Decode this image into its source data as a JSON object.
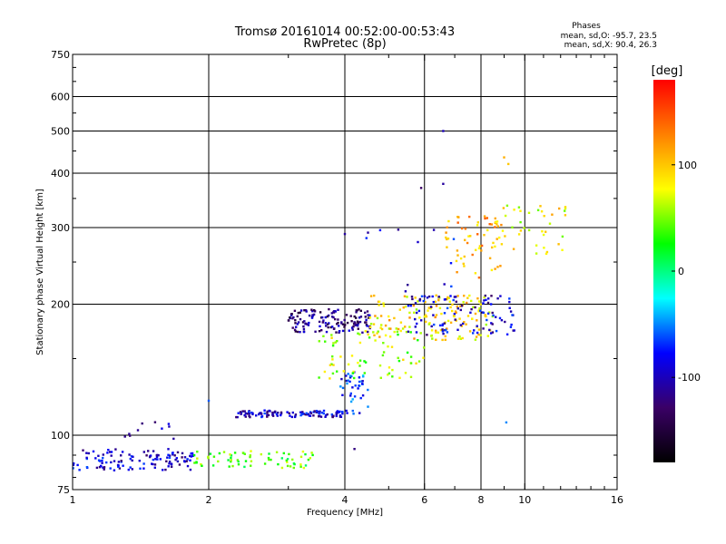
{
  "chart_data": {
    "type": "scatter",
    "title": "Tromsø 20161014 00:52:00-00:53:43",
    "subtitle": "RwPretec (8p)",
    "xlabel": "Frequency [MHz]",
    "ylabel": "Stationary phase Virtual Height [km]",
    "x_scale": "log2",
    "y_scale": "log",
    "xlim": [
      1,
      16
    ],
    "ylim": [
      75,
      750
    ],
    "xticks": [
      1,
      2,
      4,
      6,
      8,
      10,
      16
    ],
    "xtick_labels": [
      "1",
      "2",
      "4",
      "6",
      "8",
      "10",
      "16"
    ],
    "yticks": [
      75,
      100,
      200,
      300,
      400,
      500,
      600,
      750
    ],
    "ytick_labels": [
      "75",
      "100",
      "200",
      "300",
      "400",
      "500",
      "600",
      "750"
    ],
    "grid": true,
    "phases": {
      "title": "Phases",
      "line_o": "mean, sd,O: -95.7, 23.5",
      "line_x": "mean, sd,X:  90.4, 26.3"
    },
    "colorbar": {
      "label": "[deg]",
      "range": [
        -180,
        180
      ],
      "ticks": [
        100,
        0,
        -100
      ],
      "tick_labels": [
        "100",
        "0",
        "-100"
      ],
      "colors": [
        "#000000",
        "#3a0066",
        "#0000ff",
        "#00ffff",
        "#00ff00",
        "#ffff00",
        "#ff8000",
        "#ff0000"
      ]
    },
    "groups": [
      {
        "x_range": [
          1.0,
          1.85
        ],
        "y_range": [
          83,
          93
        ],
        "phase": -95,
        "count": 120
      },
      {
        "x_range": [
          1.3,
          1.8
        ],
        "y_range": [
          98,
          108
        ],
        "phase": -95,
        "count": 10
      },
      {
        "x_range": [
          1.85,
          3.4
        ],
        "y_range": [
          84,
          92
        ],
        "phase": 40,
        "count": 70
      },
      {
        "x_range": [
          2.3,
          4.1
        ],
        "y_range": [
          110,
          114
        ],
        "phase": -95,
        "count": 110
      },
      {
        "x_range": [
          3.0,
          4.6
        ],
        "y_range": [
          172,
          195
        ],
        "phase": -120,
        "count": 140
      },
      {
        "x_range": [
          3.9,
          4.5
        ],
        "y_range": [
          112,
          140
        ],
        "phase": -70,
        "count": 40
      },
      {
        "x_range": [
          3.5,
          6.0
        ],
        "y_range": [
          135,
          175
        ],
        "phase": 60,
        "count": 70
      },
      {
        "x_range": [
          4.5,
          8.5
        ],
        "y_range": [
          165,
          210
        ],
        "phase": 90,
        "count": 150
      },
      {
        "x_range": [
          5.5,
          9.5
        ],
        "y_range": [
          170,
          210
        ],
        "phase": -95,
        "count": 100
      },
      {
        "x_range": [
          6.5,
          9.0
        ],
        "y_range": [
          230,
          320
        ],
        "phase": 110,
        "count": 60
      },
      {
        "x_range": [
          8.5,
          12.5
        ],
        "y_range": [
          260,
          340
        ],
        "phase": 80,
        "count": 40
      },
      {
        "x_range": [
          4.2,
          7.0
        ],
        "y_range": [
          200,
          300
        ],
        "phase": -80,
        "count": 12
      }
    ],
    "isolated_points": [
      {
        "x": 6.6,
        "y": 500,
        "phase": -100
      },
      {
        "x": 9.0,
        "y": 435,
        "phase": 110
      },
      {
        "x": 9.2,
        "y": 420,
        "phase": 100
      },
      {
        "x": 6.6,
        "y": 378,
        "phase": -110
      },
      {
        "x": 5.9,
        "y": 370,
        "phase": -130
      },
      {
        "x": 4.0,
        "y": 290,
        "phase": -110
      },
      {
        "x": 4.5,
        "y": 292,
        "phase": -110
      },
      {
        "x": 2.0,
        "y": 120,
        "phase": -60
      },
      {
        "x": 9.1,
        "y": 107,
        "phase": -50
      },
      {
        "x": 4.2,
        "y": 93,
        "phase": -120
      }
    ]
  }
}
